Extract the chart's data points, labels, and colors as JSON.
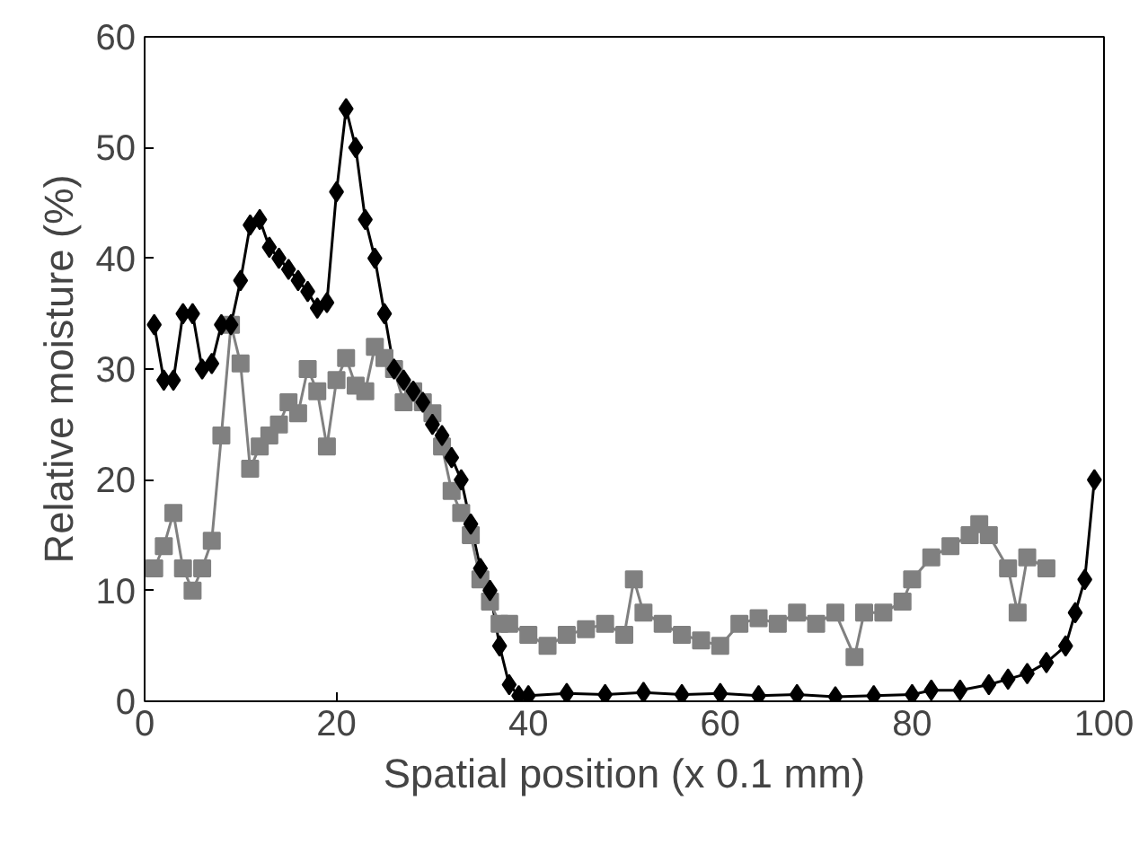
{
  "chart_data": {
    "type": "line",
    "xlabel": "Spatial position (x 0.1 mm)",
    "ylabel": "Relative moisture (%)",
    "xlim": [
      0,
      100
    ],
    "xticks": [
      0,
      20,
      40,
      60,
      80,
      100
    ],
    "ylim": [
      0,
      60
    ],
    "yticks": [
      0,
      10,
      20,
      30,
      40,
      50,
      60
    ],
    "grid": false,
    "series": [
      {
        "color": "#000000",
        "marker": "diamond",
        "x": [
          1,
          2,
          3,
          4,
          5,
          6,
          7,
          8,
          9,
          10,
          11,
          12,
          13,
          14,
          15,
          16,
          17,
          18,
          19,
          20,
          21,
          22,
          23,
          24,
          25,
          26,
          27,
          28,
          29,
          30,
          31,
          32,
          33,
          34,
          35,
          36,
          37,
          38,
          39,
          40,
          44,
          48,
          52,
          56,
          60,
          64,
          68,
          72,
          76,
          80,
          82,
          85,
          88,
          90,
          92,
          94,
          96,
          97,
          98,
          99
        ],
        "values": [
          34,
          29,
          29,
          35,
          35,
          30,
          30.5,
          34,
          34,
          38,
          43,
          43.5,
          41,
          40,
          39,
          38,
          37,
          35.5,
          36,
          46,
          53.5,
          50,
          43.5,
          40,
          35,
          30,
          29,
          28,
          27,
          25,
          24,
          22,
          20,
          16,
          12,
          10,
          5,
          1.5,
          0.5,
          0.5,
          0.7,
          0.6,
          0.8,
          0.6,
          0.7,
          0.5,
          0.6,
          0.4,
          0.5,
          0.6,
          1,
          1,
          1.5,
          2,
          2.5,
          3.5,
          5,
          8,
          11,
          20
        ]
      },
      {
        "color": "#808080",
        "marker": "square",
        "x": [
          1,
          2,
          3,
          4,
          5,
          6,
          7,
          8,
          9,
          10,
          11,
          12,
          13,
          14,
          15,
          16,
          17,
          18,
          19,
          20,
          21,
          22,
          23,
          24,
          25,
          26,
          27,
          28,
          29,
          30,
          31,
          32,
          33,
          34,
          35,
          36,
          37,
          38,
          40,
          42,
          44,
          46,
          48,
          50,
          51,
          52,
          54,
          56,
          58,
          60,
          62,
          64,
          66,
          68,
          70,
          72,
          74,
          75,
          77,
          79,
          80,
          82,
          84,
          86,
          87,
          88,
          90,
          91,
          92,
          94
        ],
        "values": [
          12,
          14,
          17,
          12,
          10,
          12,
          14.5,
          24,
          34,
          30.5,
          21,
          23,
          24,
          25,
          27,
          26,
          30,
          28,
          23,
          29,
          31,
          28.5,
          28,
          32,
          31,
          30,
          27,
          28,
          27,
          26,
          23,
          19,
          17,
          15,
          11,
          9,
          7,
          7,
          6,
          5,
          6,
          6.5,
          7,
          6,
          11,
          8,
          7,
          6,
          5.5,
          5,
          7,
          7.5,
          7,
          8,
          7,
          8,
          4,
          8,
          8,
          9,
          11,
          13,
          14,
          15,
          16,
          15,
          12,
          8,
          13,
          12
        ]
      }
    ]
  }
}
